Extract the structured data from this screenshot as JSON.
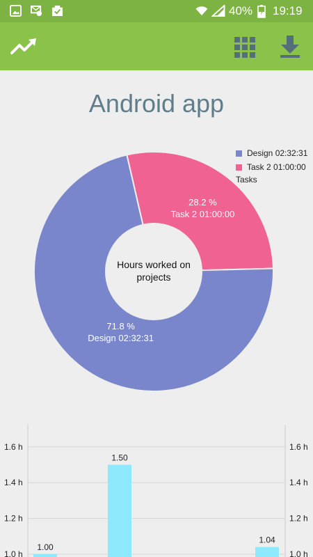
{
  "status_bar": {
    "battery_text": "40%",
    "time": "19:19",
    "icons": [
      "image-notification-icon",
      "mail-sync-icon",
      "task-done-icon",
      "wifi-icon",
      "signal-icon",
      "battery-charging-icon"
    ]
  },
  "toolbar": {
    "icons": [
      "trending-up-icon",
      "grid-icon",
      "download-icon"
    ]
  },
  "page": {
    "title": "Android app"
  },
  "colors": {
    "status_bar": "#7cb342",
    "toolbar": "#8bc34a",
    "design": "#7986cb",
    "task2": "#f06292",
    "bar": "#8de9fb",
    "title": "#5f7d8a"
  },
  "chart_data": [
    {
      "type": "pie",
      "center_text": "Hours worked on projects",
      "legend_title": "Tasks",
      "legend_position": "top-right",
      "slices": [
        {
          "name": "Design 02:32:31",
          "label": "Design 02:32:31",
          "percent_label": "71.8 %",
          "value": 71.8,
          "color": "#7986cb"
        },
        {
          "name": "Task 2 01:00:00",
          "label": "Task 2 01:00:00",
          "percent_label": "28.2 %",
          "value": 28.2,
          "color": "#f06292"
        }
      ]
    },
    {
      "type": "bar",
      "values": [
        1.0,
        1.5,
        1.04
      ],
      "value_labels": [
        "1.00",
        "1.50",
        "1.04"
      ],
      "y_ticks": [
        "1.0 h",
        "1.2 h",
        "1.4 h",
        "1.6 h"
      ],
      "y_tick_values": [
        1.0,
        1.2,
        1.4,
        1.6
      ],
      "ylim": [
        1.0,
        1.7
      ],
      "grid": true
    }
  ]
}
